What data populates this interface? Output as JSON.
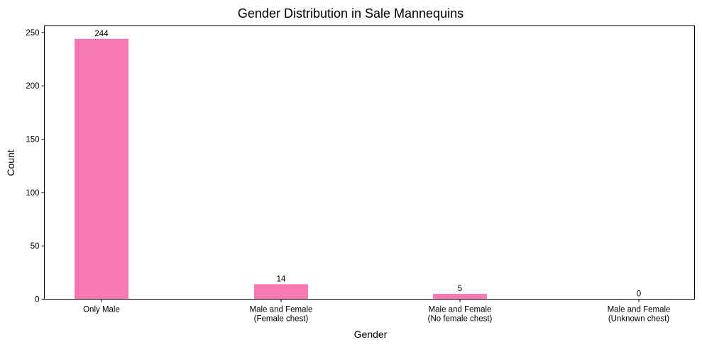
{
  "chart_data": {
    "type": "bar",
    "title": "Gender Distribution in Sale Mannequins",
    "xlabel": "Gender",
    "ylabel": "Count",
    "categories": [
      [
        "Only Male"
      ],
      [
        "Male and Female",
        "(Female chest)"
      ],
      [
        "Male and Female",
        "(No female chest)"
      ],
      [
        "Male and Female",
        "(Unknown chest)"
      ]
    ],
    "values": [
      244,
      14,
      5,
      0
    ],
    "data_labels": [
      "244",
      "14",
      "5",
      "0"
    ],
    "ylim": [
      0,
      256.2
    ],
    "yticks": [
      0,
      50,
      100,
      150,
      200,
      250
    ],
    "bar_color": "#f878b4",
    "grid": false,
    "legend": "none"
  }
}
